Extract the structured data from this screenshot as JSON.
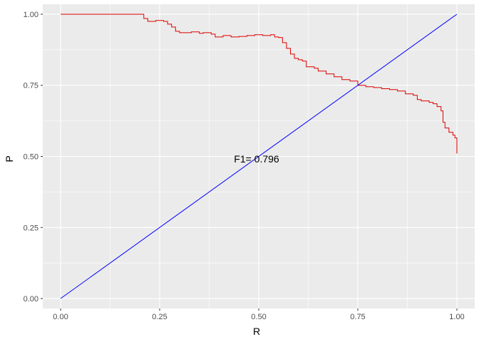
{
  "chart_data": {
    "type": "line",
    "xlabel": "R",
    "ylabel": "P",
    "xlim": [
      -0.045,
      1.045
    ],
    "ylim": [
      -0.035,
      1.035
    ],
    "x_ticks": [
      0.0,
      0.25,
      0.5,
      0.75,
      1.0
    ],
    "x_tick_labels": [
      "0.00",
      "0.25",
      "0.50",
      "0.75",
      "1.00"
    ],
    "y_ticks": [
      0.0,
      0.25,
      0.5,
      0.75,
      1.0
    ],
    "y_tick_labels": [
      "0.00",
      "0.25",
      "0.50",
      "0.75",
      "1.00"
    ],
    "grid": true,
    "annotation": {
      "text": "F1= 0.796",
      "x": 0.5,
      "y": 0.5
    },
    "series": [
      {
        "color": "#e00000",
        "step": true,
        "points": [
          [
            0.0,
            1.0
          ],
          [
            0.2,
            1.0
          ],
          [
            0.21,
            0.985
          ],
          [
            0.22,
            0.975
          ],
          [
            0.24,
            0.978
          ],
          [
            0.26,
            0.975
          ],
          [
            0.27,
            0.965
          ],
          [
            0.28,
            0.955
          ],
          [
            0.29,
            0.94
          ],
          [
            0.3,
            0.935
          ],
          [
            0.33,
            0.938
          ],
          [
            0.35,
            0.933
          ],
          [
            0.36,
            0.935
          ],
          [
            0.38,
            0.93
          ],
          [
            0.39,
            0.92
          ],
          [
            0.41,
            0.925
          ],
          [
            0.43,
            0.92
          ],
          [
            0.45,
            0.922
          ],
          [
            0.47,
            0.925
          ],
          [
            0.49,
            0.928
          ],
          [
            0.51,
            0.925
          ],
          [
            0.53,
            0.928
          ],
          [
            0.54,
            0.92
          ],
          [
            0.55,
            0.918
          ],
          [
            0.56,
            0.9
          ],
          [
            0.57,
            0.88
          ],
          [
            0.58,
            0.86
          ],
          [
            0.59,
            0.845
          ],
          [
            0.6,
            0.84
          ],
          [
            0.61,
            0.835
          ],
          [
            0.62,
            0.815
          ],
          [
            0.64,
            0.81
          ],
          [
            0.65,
            0.8
          ],
          [
            0.67,
            0.79
          ],
          [
            0.69,
            0.78
          ],
          [
            0.71,
            0.77
          ],
          [
            0.73,
            0.765
          ],
          [
            0.75,
            0.75
          ],
          [
            0.77,
            0.745
          ],
          [
            0.79,
            0.742
          ],
          [
            0.81,
            0.738
          ],
          [
            0.83,
            0.735
          ],
          [
            0.85,
            0.73
          ],
          [
            0.87,
            0.72
          ],
          [
            0.89,
            0.715
          ],
          [
            0.9,
            0.7
          ],
          [
            0.91,
            0.695
          ],
          [
            0.93,
            0.69
          ],
          [
            0.94,
            0.685
          ],
          [
            0.95,
            0.675
          ],
          [
            0.96,
            0.66
          ],
          [
            0.965,
            0.62
          ],
          [
            0.97,
            0.6
          ],
          [
            0.98,
            0.585
          ],
          [
            0.99,
            0.575
          ],
          [
            0.995,
            0.565
          ],
          [
            1.0,
            0.51
          ]
        ]
      },
      {
        "color": "#0000ff",
        "step": false,
        "points": [
          [
            0.0,
            0.0
          ],
          [
            1.0,
            1.0
          ]
        ]
      }
    ]
  }
}
